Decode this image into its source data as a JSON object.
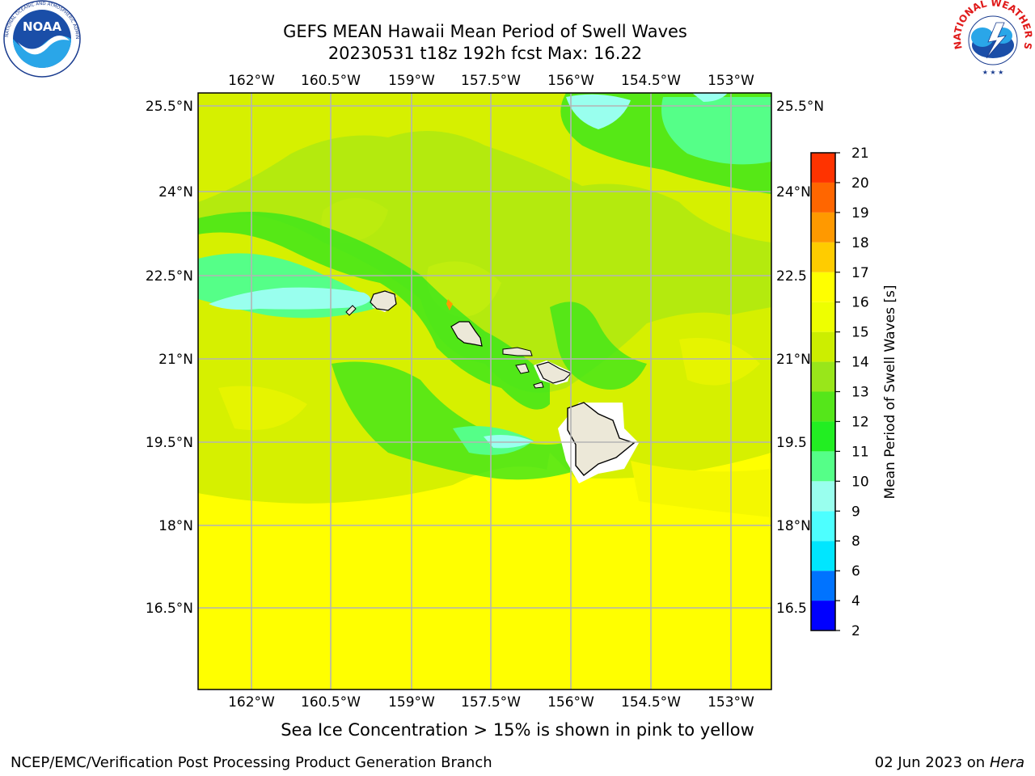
{
  "header": {
    "title_line1": "GEFS MEAN Hawaii Mean Period of Swell Waves",
    "title_line2": "20230531 t18z 192h fcst   Max: 16.22"
  },
  "logos": {
    "left": {
      "text": "NOAA",
      "ring_text": "NATIONAL OCEANIC AND ATMOSPHERIC ADMINISTRATION · U.S. DEPARTMENT OF COMMERCE",
      "icon": "noaa-logo"
    },
    "right": {
      "ring_text": "NATIONAL WEATHER SERVICE",
      "icon": "nws-logo"
    }
  },
  "map": {
    "lon_labels": [
      "162°W",
      "160.5°W",
      "159°W",
      "157.5°W",
      "156°W",
      "154.5°W",
      "153°W"
    ],
    "lat_labels": [
      "25.5°N",
      "24°N",
      "22.5°N",
      "21°N",
      "19.5°N",
      "18°N",
      "16.5°N"
    ],
    "right_lat_labels": [
      "25.5°N",
      "24°N",
      "22.5",
      "21°N",
      "19.5",
      "18°N",
      "16.5"
    ],
    "grid_color": "#b4b4b4",
    "land_color": "#ece8d8",
    "field_max": 16.22
  },
  "colorbar": {
    "label": "Mean Period of Swell Waves [s]",
    "ticks": [
      "2",
      "4",
      "6",
      "8",
      "9",
      "10",
      "11",
      "12",
      "13",
      "14",
      "15",
      "16",
      "17",
      "18",
      "19",
      "20",
      "21"
    ],
    "colors": [
      "#0000ff",
      "#0073ff",
      "#00e6ff",
      "#4dffff",
      "#99ffee",
      "#55ff88",
      "#22ee22",
      "#55e61a",
      "#99e61a",
      "#ccee00",
      "#eeff00",
      "#ffff00",
      "#ffcc00",
      "#ff9900",
      "#ff6600",
      "#ff3300",
      "#ff0000"
    ]
  },
  "caption": "Sea Ice Concentration > 15% is shown in pink to yellow",
  "footer": {
    "left": "NCEP/EMC/Verification Post Processing Product Generation Branch",
    "right_date": "02 Jun 2023 on",
    "right_host": "Hera"
  }
}
